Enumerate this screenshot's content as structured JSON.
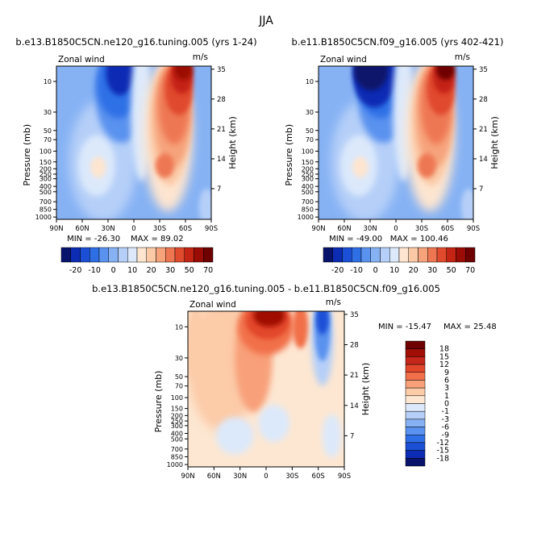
{
  "page_title": "JJA",
  "chart_data": [
    {
      "type": "heatmap",
      "title": "b.e13.B1850C5CN.ne120_g16.tuning.005 (yrs 1-24)",
      "variable": "Zonal wind",
      "units": "m/s",
      "xlabel": "",
      "x_ticks": [
        "90N",
        "60N",
        "30N",
        "0",
        "30S",
        "60S",
        "90S"
      ],
      "ylabel": "Pressure (mb)",
      "y_ticks": [
        "10",
        "30",
        "50",
        "70",
        "100",
        "150",
        "200",
        "250",
        "300",
        "400",
        "500",
        "700",
        "850",
        "1000"
      ],
      "y2label": "Height (km)",
      "y2_ticks": [
        "35",
        "28",
        "21",
        "14",
        "7"
      ],
      "min_label": "MIN = -26.30",
      "max_label": "MAX =  89.02",
      "min": -26.3,
      "max": 89.02,
      "colorbar_labels": [
        "-20",
        "-10",
        "0",
        "10",
        "20",
        "30",
        "50",
        "70"
      ]
    },
    {
      "type": "heatmap",
      "title": "b.e11.B1850C5CN.f09_g16.005 (yrs 402-421)",
      "variable": "Zonal wind",
      "units": "m/s",
      "xlabel": "",
      "x_ticks": [
        "90N",
        "60N",
        "30N",
        "0",
        "30S",
        "60S",
        "90S"
      ],
      "ylabel": "Pressure (mb)",
      "y_ticks": [
        "10",
        "30",
        "50",
        "70",
        "100",
        "150",
        "200",
        "250",
        "300",
        "400",
        "500",
        "700",
        "850",
        "1000"
      ],
      "y2label": "Height (km)",
      "y2_ticks": [
        "35",
        "28",
        "21",
        "14",
        "7"
      ],
      "min_label": "MIN = -49.00",
      "max_label": "MAX = 100.46",
      "min": -49.0,
      "max": 100.46,
      "colorbar_labels": [
        "-20",
        "-10",
        "0",
        "10",
        "20",
        "30",
        "50",
        "70"
      ]
    },
    {
      "type": "heatmap",
      "title": "b.e13.B1850C5CN.ne120_g16.tuning.005 - b.e11.B1850C5CN.f09_g16.005",
      "variable": "Zonal wind",
      "units": "m/s",
      "xlabel": "",
      "x_ticks": [
        "90N",
        "60N",
        "30N",
        "0",
        "30S",
        "60S",
        "90S"
      ],
      "ylabel": "Pressure (mb)",
      "y_ticks": [
        "10",
        "30",
        "50",
        "70",
        "100",
        "150",
        "200",
        "250",
        "300",
        "400",
        "500",
        "700",
        "850",
        "1000"
      ],
      "y2label": "Height (km)",
      "y2_ticks": [
        "35",
        "28",
        "21",
        "14",
        "7"
      ],
      "min_label": "MIN = -15.47",
      "max_label": "MAX =  25.48",
      "min": -15.47,
      "max": 25.48,
      "colorbar_labels": [
        "18",
        "15",
        "12",
        "9",
        "6",
        "3",
        "1",
        "0",
        "-1",
        "-3",
        "-6",
        "-9",
        "-12",
        "-15",
        "-18"
      ]
    }
  ],
  "palette": {
    "wind": [
      "#08136b",
      "#0c2cb4",
      "#1a4fd6",
      "#2f6fe6",
      "#5a92ef",
      "#86b2f4",
      "#b5cff8",
      "#dce9fb",
      "#fde5d0",
      "#fbc9a6",
      "#f6a37c",
      "#ee7752",
      "#e04a2d",
      "#c42414",
      "#9b0c06",
      "#6e0000"
    ],
    "diff": [
      "#6e0000",
      "#a00e06",
      "#c7261a",
      "#e2472b",
      "#f1704a",
      "#f8a079",
      "#fccba8",
      "#fde7d2",
      "#dce9fb",
      "#b5cff8",
      "#86b2f4",
      "#5a92ef",
      "#2f6fe6",
      "#1a4fd6",
      "#0c2cb4",
      "#08136b"
    ]
  }
}
